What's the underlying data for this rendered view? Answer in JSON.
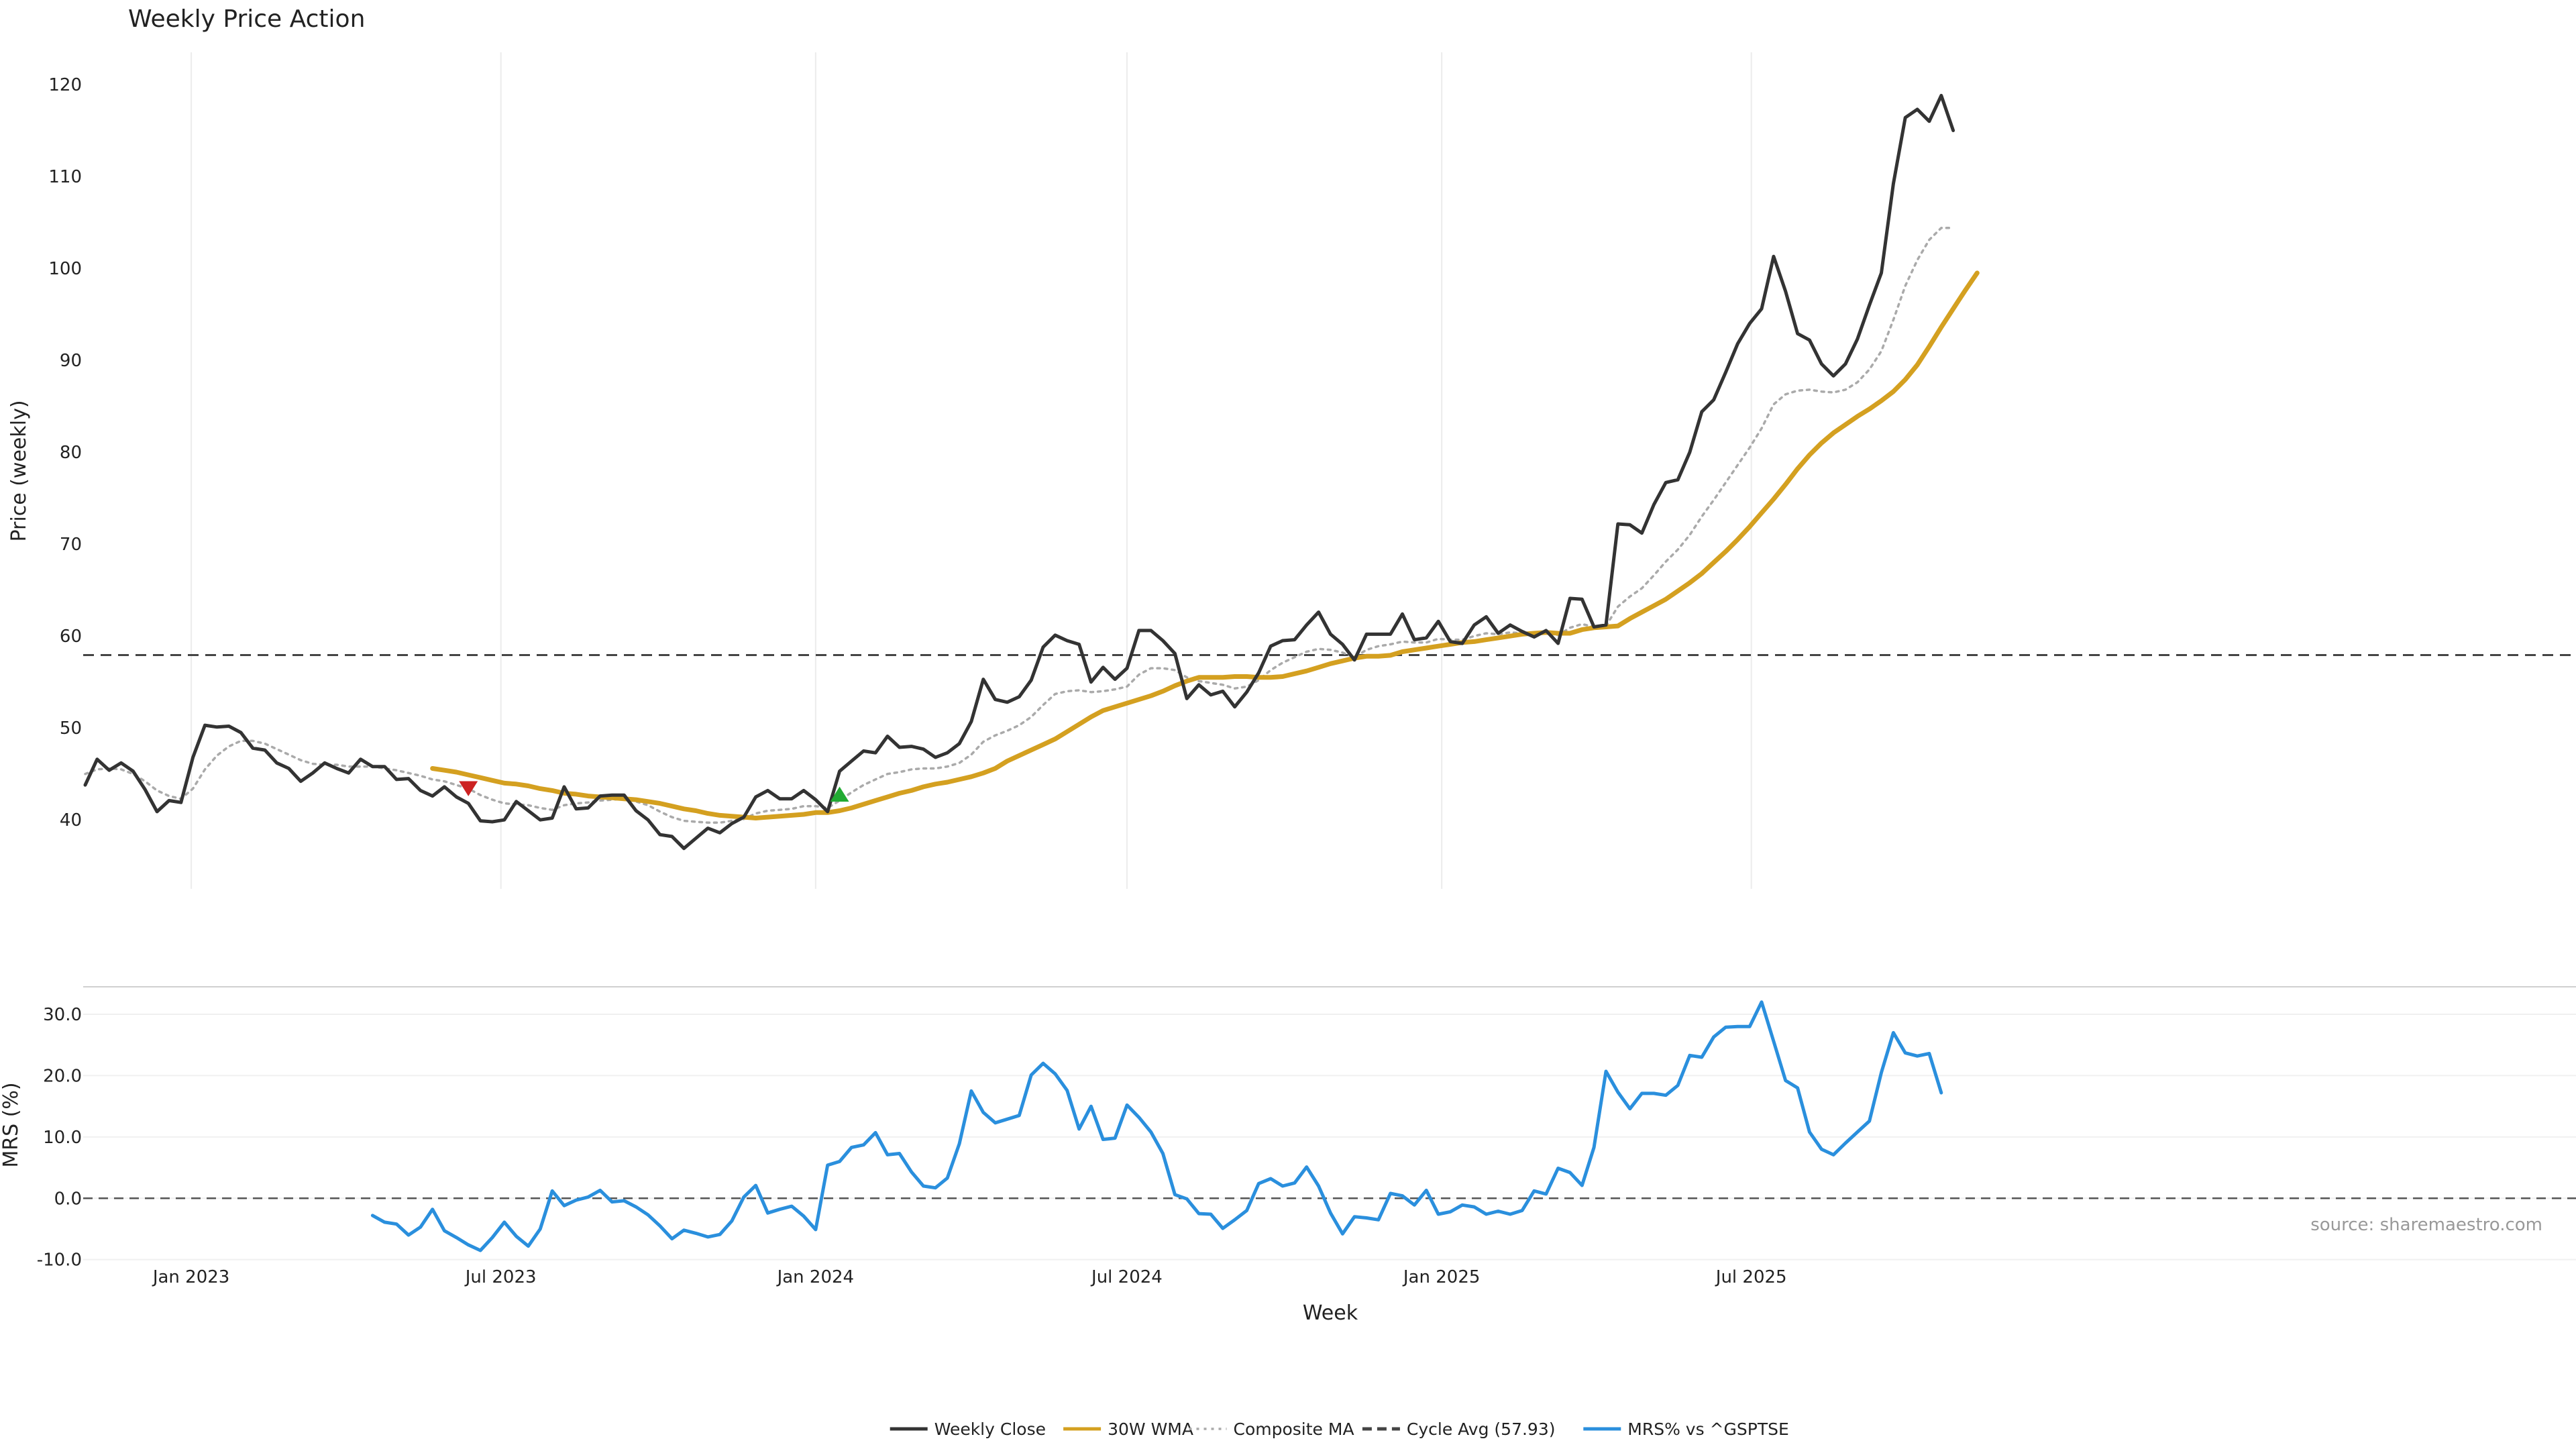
{
  "chart_data": {
    "type": "line",
    "title": "Weekly Price Action",
    "xlabel": "Week",
    "source": "source: sharemaestro.com",
    "x_ticks": [
      "Jan 2023",
      "Jul 2023",
      "Jan 2024",
      "Jul 2024",
      "Jan 2025",
      "Jul 2025"
    ],
    "x_start": "2022-10-31",
    "grid": true,
    "legend_placement": "bottom-center",
    "colors": {
      "weekly_close": "#333333",
      "wma": "#d4a020",
      "composite": "#aaaaaa",
      "cycle_avg": "#444444",
      "mrs": "#2a8fdd",
      "sell_marker": "#cc2222",
      "buy_marker": "#22aa33"
    },
    "price_panel": {
      "ylabel": "Price (weekly)",
      "ylim": [
        32.5,
        123.5
      ],
      "yticks": [
        "40",
        "50",
        "60",
        "70",
        "80",
        "90",
        "100",
        "110",
        "120"
      ],
      "cycle_avg": 57.93,
      "series": [
        {
          "name": "Weekly Close",
          "style": "solid",
          "start_week": 0,
          "values": [
            43.8,
            46.6,
            45.4,
            46.2,
            45.3,
            43.3,
            40.9,
            42.1,
            41.9,
            46.8,
            50.3,
            50.1,
            50.2,
            49.5,
            47.8,
            47.6,
            46.2,
            45.6,
            44.2,
            45.1,
            46.2,
            45.6,
            45.1,
            46.6,
            45.8,
            45.8,
            44.4,
            44.5,
            43.2,
            42.6,
            43.6,
            42.5,
            41.8,
            39.9,
            39.8,
            40.0,
            42.0,
            41.0,
            40.0,
            40.2,
            43.6,
            41.2,
            41.3,
            42.6,
            42.7,
            42.7,
            41.0,
            40.0,
            38.4,
            38.2,
            36.9,
            38.0,
            39.1,
            38.6,
            39.6,
            40.3,
            42.5,
            43.2,
            42.3,
            42.3,
            43.2,
            42.2,
            40.9,
            45.3,
            46.4,
            47.5,
            47.3,
            49.1,
            47.9,
            48.0,
            47.7,
            46.8,
            47.3,
            48.3,
            50.7,
            55.3,
            53.1,
            52.8,
            53.4,
            55.2,
            58.8,
            60.1,
            59.5,
            59.1,
            55.0,
            56.6,
            55.3,
            56.5,
            60.6,
            60.6,
            59.5,
            58.1,
            53.2,
            54.7,
            53.6,
            54.0,
            52.3,
            53.9,
            56.0,
            58.9,
            59.5,
            59.6,
            61.2,
            62.6,
            60.2,
            59.1,
            57.4,
            60.2,
            60.2,
            60.2,
            62.4,
            59.6,
            59.8,
            61.6,
            59.4,
            59.2,
            61.2,
            62.1,
            60.3,
            61.2,
            60.5,
            59.9,
            60.6,
            59.2,
            64.1,
            64.0,
            61.0,
            61.2,
            72.2,
            72.1,
            71.2,
            74.3,
            76.7,
            77.0,
            80.0,
            84.4,
            85.7,
            88.7,
            91.8,
            94.0,
            95.6,
            101.3,
            97.5,
            92.9,
            92.2,
            89.6,
            88.3,
            89.6,
            92.3,
            96.0,
            99.5,
            109.2,
            116.4,
            117.3,
            116.0,
            118.8,
            115.0
          ]
        },
        {
          "name": "30W WMA",
          "style": "solid",
          "start_week": 29,
          "values": [
            45.6,
            45.4,
            45.2,
            44.9,
            44.6,
            44.3,
            44.0,
            43.9,
            43.7,
            43.4,
            43.2,
            42.9,
            42.8,
            42.6,
            42.5,
            42.4,
            42.3,
            42.2,
            42.0,
            41.8,
            41.5,
            41.2,
            41.0,
            40.7,
            40.5,
            40.4,
            40.3,
            40.2,
            40.3,
            40.4,
            40.5,
            40.6,
            40.8,
            40.8,
            41.0,
            41.3,
            41.7,
            42.1,
            42.5,
            42.9,
            43.2,
            43.6,
            43.9,
            44.1,
            44.4,
            44.7,
            45.1,
            45.6,
            46.4,
            47.0,
            47.6,
            48.2,
            48.8,
            49.6,
            50.4,
            51.2,
            51.9,
            52.3,
            52.7,
            53.1,
            53.5,
            54.0,
            54.6,
            55.1,
            55.5,
            55.5,
            55.5,
            55.6,
            55.6,
            55.5,
            55.5,
            55.6,
            55.9,
            56.2,
            56.6,
            57.0,
            57.3,
            57.6,
            57.8,
            57.8,
            57.9,
            58.3,
            58.5,
            58.7,
            58.9,
            59.1,
            59.3,
            59.4,
            59.6,
            59.8,
            60.0,
            60.2,
            60.3,
            60.4,
            60.3,
            60.3,
            60.7,
            60.9,
            61.0,
            61.1,
            61.9,
            62.6,
            63.3,
            64.0,
            64.9,
            65.8,
            66.8,
            68.0,
            69.2,
            70.5,
            71.9,
            73.4,
            74.9,
            76.5,
            78.2,
            79.7,
            81.0,
            82.1,
            83.0,
            83.9,
            84.7,
            85.6,
            86.6,
            87.9,
            89.5,
            91.5,
            93.6,
            95.6,
            97.6,
            99.5
          ]
        },
        {
          "name": "Composite MA",
          "style": "dotted",
          "start_week": 0,
          "values": [
            45.0,
            45.5,
            45.6,
            45.5,
            45.0,
            44.2,
            43.2,
            42.6,
            42.3,
            43.4,
            45.5,
            47.0,
            48.0,
            48.6,
            48.6,
            48.3,
            47.7,
            47.1,
            46.5,
            46.1,
            46.0,
            46.0,
            45.8,
            45.8,
            45.8,
            45.6,
            45.4,
            45.1,
            44.8,
            44.4,
            44.2,
            43.8,
            43.4,
            42.7,
            42.2,
            41.8,
            41.7,
            41.6,
            41.3,
            41.1,
            41.6,
            41.8,
            41.9,
            42.1,
            42.2,
            42.3,
            42.0,
            41.6,
            40.9,
            40.3,
            39.9,
            39.8,
            39.7,
            39.7,
            39.9,
            40.1,
            40.7,
            41.0,
            41.1,
            41.2,
            41.5,
            41.5,
            41.3,
            42.1,
            43.0,
            43.8,
            44.4,
            45.0,
            45.2,
            45.5,
            45.6,
            45.6,
            45.8,
            46.2,
            47.1,
            48.5,
            49.2,
            49.7,
            50.3,
            51.2,
            52.5,
            53.7,
            54.0,
            54.1,
            53.9,
            54.0,
            54.2,
            54.5,
            55.8,
            56.5,
            56.5,
            56.3,
            55.5,
            55.1,
            54.9,
            54.7,
            54.3,
            54.5,
            55.2,
            56.3,
            57.1,
            57.7,
            58.3,
            58.6,
            58.5,
            58.2,
            57.7,
            58.5,
            58.9,
            59.1,
            59.4,
            59.3,
            59.3,
            59.7,
            59.6,
            59.6,
            60.0,
            60.3,
            60.2,
            60.4,
            60.3,
            60.1,
            60.3,
            60.1,
            60.9,
            61.3,
            61.0,
            61.1,
            63.2,
            64.3,
            65.2,
            66.6,
            68.1,
            69.4,
            71.0,
            73.0,
            74.8,
            76.7,
            78.6,
            80.5,
            82.6,
            85.2,
            86.3,
            86.7,
            86.8,
            86.6,
            86.5,
            86.8,
            87.6,
            89.0,
            91.0,
            94.4,
            98.1,
            100.9,
            103.1,
            104.4,
            104.4
          ]
        }
      ],
      "markers": [
        {
          "type": "sell",
          "week": 32,
          "value": 43.5
        },
        {
          "type": "buy",
          "week": 63,
          "value": 42.7
        }
      ]
    },
    "mrs_panel": {
      "ylabel": "MRS (%)",
      "ylim": [
        -10.8,
        33.5
      ],
      "yticks": [
        "-10.0",
        "0.0",
        "10.0",
        "20.0",
        "30.0"
      ],
      "series": [
        {
          "name": "MRS% vs ^GSPTSE",
          "start_week": 24,
          "values": [
            -2.8,
            -3.9,
            -4.2,
            -6.0,
            -4.7,
            -1.8,
            -5.3,
            -6.4,
            -7.6,
            -8.5,
            -6.4,
            -3.9,
            -6.2,
            -7.8,
            -5.0,
            1.2,
            -1.2,
            -0.3,
            0.2,
            1.3,
            -0.6,
            -0.4,
            -1.4,
            -2.7,
            -4.5,
            -6.6,
            -5.2,
            -5.7,
            -6.3,
            -5.9,
            -3.7,
            0.2,
            2.1,
            -2.4,
            -1.8,
            -1.3,
            -2.9,
            -5.1,
            5.4,
            6.0,
            8.3,
            8.7,
            10.7,
            7.1,
            7.3,
            4.3,
            2.0,
            1.7,
            3.3,
            8.9,
            17.5,
            14.0,
            12.3,
            12.9,
            13.5,
            20.1,
            22.0,
            20.3,
            17.6,
            11.3,
            15.0,
            9.6,
            9.8,
            15.2,
            13.2,
            10.8,
            7.3,
            0.6,
            -0.1,
            -2.5,
            -2.6,
            -4.9,
            -3.5,
            -2.0,
            2.4,
            3.2,
            2.0,
            2.5,
            5.1,
            2.0,
            -2.4,
            -5.8,
            -3.0,
            -3.2,
            -3.5,
            0.8,
            0.4,
            -1.1,
            1.3,
            -2.6,
            -2.2,
            -1.1,
            -1.4,
            -2.6,
            -2.1,
            -2.6,
            -2.0,
            1.2,
            0.7,
            4.9,
            4.2,
            2.1,
            8.3,
            20.7,
            17.3,
            14.6,
            17.1,
            17.1,
            16.8,
            18.4,
            23.3,
            23.0,
            26.3,
            27.9,
            28.0,
            28.0,
            32.0,
            25.6,
            19.2,
            18.0,
            10.8,
            8.0,
            7.1,
            9.0,
            10.8,
            12.6,
            20.5,
            27.0,
            23.7,
            23.2,
            23.6,
            17.2
          ]
        }
      ]
    },
    "legend": [
      {
        "label": "Weekly Close",
        "style": "solid",
        "color": "#333333"
      },
      {
        "label": "30W WMA",
        "style": "solid",
        "color": "#d4a020"
      },
      {
        "label": "Composite MA",
        "style": "dotted",
        "color": "#aaaaaa"
      },
      {
        "label": "Cycle Avg (57.93)",
        "style": "dashed",
        "color": "#444444"
      },
      {
        "label": "MRS% vs ^GSPTSE",
        "style": "solid",
        "color": "#2a8fdd"
      }
    ]
  }
}
